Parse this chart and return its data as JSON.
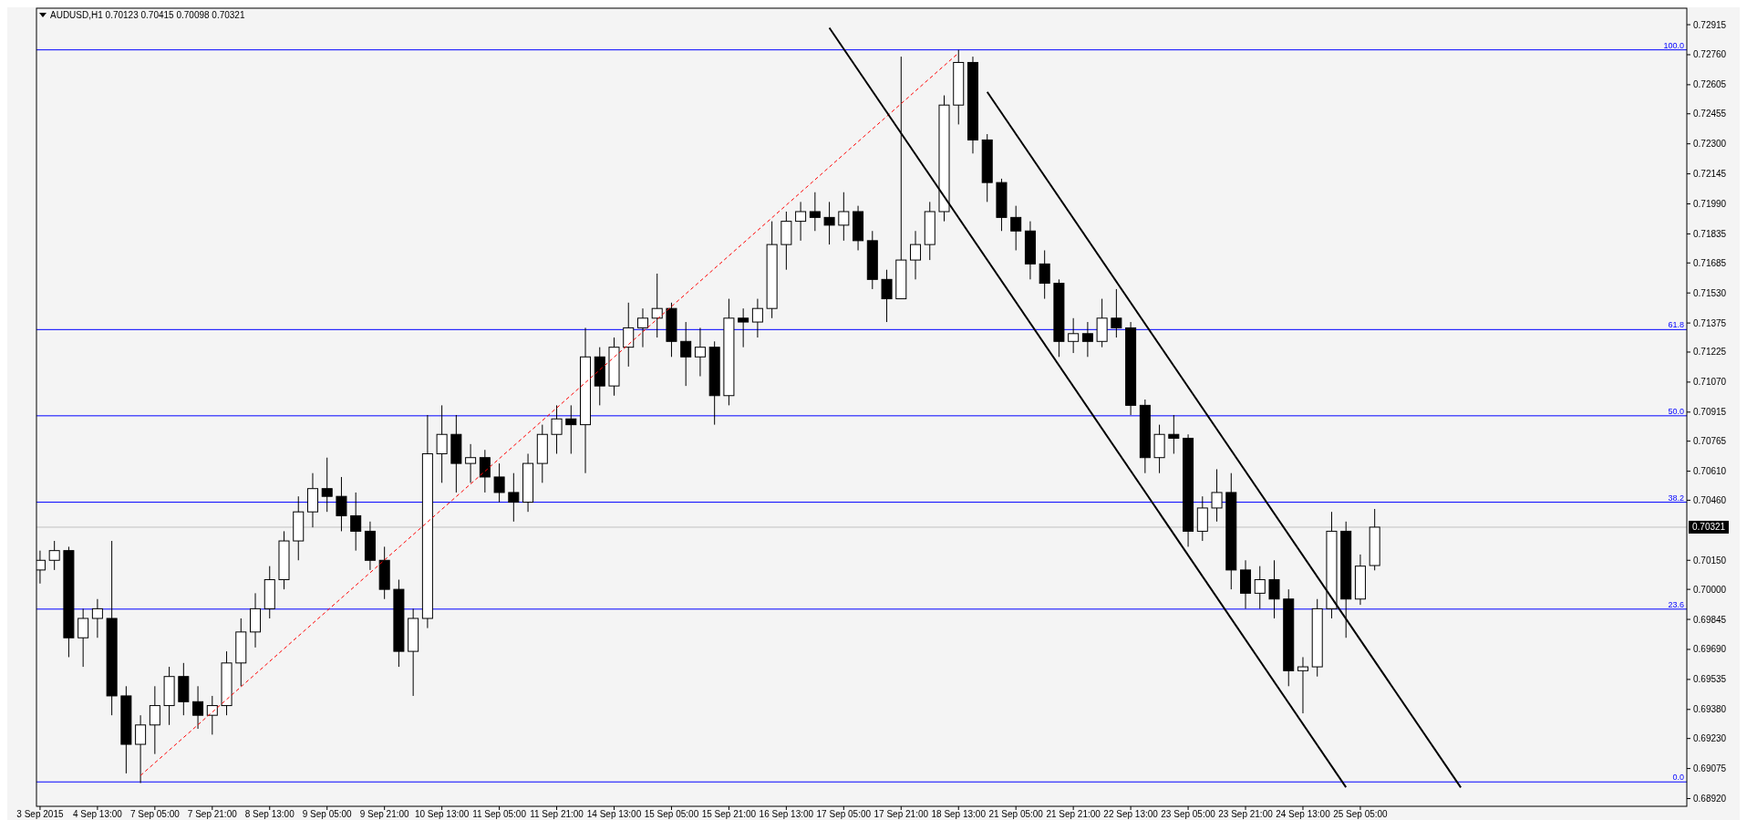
{
  "chart_data": {
    "type": "candlestick",
    "title": "AUDUSD,H1 0.70123 0.70415 0.70098 0.70321",
    "grid": false,
    "categories": [
      "3 Sep 2015",
      null,
      null,
      null,
      "4 Sep 13:00",
      null,
      null,
      null,
      "7 Sep 05:00",
      null,
      null,
      null,
      "7 Sep 21:00",
      null,
      null,
      null,
      "8 Sep 13:00",
      null,
      null,
      null,
      "9 Sep 05:00",
      null,
      null,
      null,
      "9 Sep 21:00",
      null,
      null,
      null,
      "10 Sep 13:00",
      null,
      null,
      null,
      "11 Sep 05:00",
      null,
      null,
      null,
      "11 Sep 21:00",
      null,
      null,
      null,
      "14 Sep 13:00",
      null,
      null,
      null,
      "15 Sep 05:00",
      null,
      null,
      null,
      "15 Sep 21:00",
      null,
      null,
      null,
      "16 Sep 13:00",
      null,
      null,
      null,
      "17 Sep 05:00",
      null,
      null,
      null,
      "17 Sep 21:00",
      null,
      null,
      null,
      "18 Sep 13:00",
      null,
      null,
      null,
      "21 Sep 05:00",
      null,
      null,
      null,
      "21 Sep 21:00",
      null,
      null,
      null,
      "22 Sep 13:00",
      null,
      null,
      null,
      "23 Sep 05:00",
      null,
      null,
      null,
      "23 Sep 21:00",
      null,
      null,
      null,
      "24 Sep 13:00",
      null,
      null,
      null,
      "25 Sep 05:00",
      null,
      null,
      null,
      null,
      null,
      null,
      null,
      null,
      null,
      null,
      null,
      null,
      null,
      null,
      null,
      null,
      null,
      null,
      null,
      null,
      null,
      null
    ],
    "ohlc": [
      [
        0.701,
        0.702,
        0.7003,
        0.7015
      ],
      [
        0.7015,
        0.7025,
        0.701,
        0.702
      ],
      [
        0.702,
        0.7022,
        0.6965,
        0.6975
      ],
      [
        0.6975,
        0.699,
        0.696,
        0.6985
      ],
      [
        0.6985,
        0.6995,
        0.6975,
        0.699
      ],
      [
        0.6985,
        0.7025,
        0.6935,
        0.6945
      ],
      [
        0.6945,
        0.695,
        0.6905,
        0.692
      ],
      [
        0.692,
        0.6935,
        0.69,
        0.693
      ],
      [
        0.693,
        0.695,
        0.6915,
        0.694
      ],
      [
        0.694,
        0.696,
        0.693,
        0.6955
      ],
      [
        0.6955,
        0.6962,
        0.6935,
        0.6942
      ],
      [
        0.6942,
        0.695,
        0.6928,
        0.6935
      ],
      [
        0.6935,
        0.6945,
        0.6925,
        0.694
      ],
      [
        0.694,
        0.6968,
        0.6935,
        0.6962
      ],
      [
        0.6962,
        0.6985,
        0.695,
        0.6978
      ],
      [
        0.6978,
        0.6998,
        0.697,
        0.699
      ],
      [
        0.699,
        0.7012,
        0.6985,
        0.7005
      ],
      [
        0.7005,
        0.703,
        0.7,
        0.7025
      ],
      [
        0.7025,
        0.7048,
        0.7015,
        0.704
      ],
      [
        0.704,
        0.706,
        0.7032,
        0.7052
      ],
      [
        0.7052,
        0.7068,
        0.704,
        0.7048
      ],
      [
        0.7048,
        0.7058,
        0.703,
        0.7038
      ],
      [
        0.7038,
        0.705,
        0.702,
        0.703
      ],
      [
        0.703,
        0.7035,
        0.701,
        0.7015
      ],
      [
        0.7015,
        0.7022,
        0.6995,
        0.7
      ],
      [
        0.7,
        0.7005,
        0.696,
        0.6968
      ],
      [
        0.6968,
        0.699,
        0.6945,
        0.6985
      ],
      [
        0.6985,
        0.709,
        0.698,
        0.707
      ],
      [
        0.707,
        0.7095,
        0.7055,
        0.708
      ],
      [
        0.708,
        0.709,
        0.705,
        0.7065
      ],
      [
        0.7065,
        0.7075,
        0.7055,
        0.7068
      ],
      [
        0.7068,
        0.7072,
        0.705,
        0.7058
      ],
      [
        0.7058,
        0.7065,
        0.7045,
        0.705
      ],
      [
        0.705,
        0.706,
        0.7035,
        0.7045
      ],
      [
        0.7045,
        0.707,
        0.704,
        0.7065
      ],
      [
        0.7065,
        0.7085,
        0.7055,
        0.708
      ],
      [
        0.708,
        0.7095,
        0.707,
        0.7088
      ],
      [
        0.7088,
        0.7095,
        0.707,
        0.7085
      ],
      [
        0.7085,
        0.7135,
        0.706,
        0.712
      ],
      [
        0.712,
        0.7125,
        0.7095,
        0.7105
      ],
      [
        0.7105,
        0.713,
        0.71,
        0.7125
      ],
      [
        0.7125,
        0.7148,
        0.7115,
        0.7135
      ],
      [
        0.7135,
        0.7145,
        0.7125,
        0.714
      ],
      [
        0.714,
        0.7163,
        0.713,
        0.7145
      ],
      [
        0.7145,
        0.7148,
        0.712,
        0.7128
      ],
      [
        0.7128,
        0.7138,
        0.7105,
        0.712
      ],
      [
        0.712,
        0.7135,
        0.711,
        0.7125
      ],
      [
        0.7125,
        0.7128,
        0.7085,
        0.71
      ],
      [
        0.71,
        0.715,
        0.7095,
        0.714
      ],
      [
        0.714,
        0.7145,
        0.7125,
        0.7138
      ],
      [
        0.7138,
        0.715,
        0.713,
        0.7145
      ],
      [
        0.7145,
        0.719,
        0.714,
        0.7178
      ],
      [
        0.7178,
        0.7195,
        0.7165,
        0.719
      ],
      [
        0.719,
        0.72,
        0.718,
        0.7195
      ],
      [
        0.7195,
        0.7205,
        0.7185,
        0.7192
      ],
      [
        0.7192,
        0.72,
        0.7178,
        0.7188
      ],
      [
        0.7188,
        0.7205,
        0.718,
        0.7195
      ],
      [
        0.7195,
        0.7198,
        0.7175,
        0.718
      ],
      [
        0.718,
        0.7185,
        0.7155,
        0.716
      ],
      [
        0.716,
        0.7165,
        0.7138,
        0.715
      ],
      [
        0.715,
        0.7275,
        0.715,
        0.717
      ],
      [
        0.717,
        0.7185,
        0.716,
        0.7178
      ],
      [
        0.7178,
        0.72,
        0.717,
        0.7195
      ],
      [
        0.7195,
        0.7255,
        0.719,
        0.725
      ],
      [
        0.725,
        0.72785,
        0.724,
        0.7272
      ],
      [
        0.7272,
        0.7275,
        0.7225,
        0.7232
      ],
      [
        0.7232,
        0.7235,
        0.72,
        0.721
      ],
      [
        0.721,
        0.7212,
        0.7185,
        0.7192
      ],
      [
        0.7192,
        0.7198,
        0.7175,
        0.7185
      ],
      [
        0.7185,
        0.719,
        0.716,
        0.7168
      ],
      [
        0.7168,
        0.7175,
        0.715,
        0.7158
      ],
      [
        0.7158,
        0.716,
        0.712,
        0.7128
      ],
      [
        0.7128,
        0.714,
        0.7122,
        0.7132
      ],
      [
        0.7132,
        0.7138,
        0.712,
        0.7128
      ],
      [
        0.7128,
        0.715,
        0.7125,
        0.714
      ],
      [
        0.714,
        0.7155,
        0.713,
        0.7135
      ],
      [
        0.7135,
        0.7138,
        0.709,
        0.7095
      ],
      [
        0.7095,
        0.7098,
        0.706,
        0.7068
      ],
      [
        0.7068,
        0.7085,
        0.706,
        0.708
      ],
      [
        0.708,
        0.709,
        0.707,
        0.7078
      ],
      [
        0.7078,
        0.708,
        0.7022,
        0.703
      ],
      [
        0.703,
        0.7048,
        0.7025,
        0.7042
      ],
      [
        0.7042,
        0.7062,
        0.7035,
        0.705
      ],
      [
        0.705,
        0.706,
        0.7,
        0.701
      ],
      [
        0.701,
        0.7015,
        0.699,
        0.6998
      ],
      [
        0.6998,
        0.7012,
        0.699,
        0.7005
      ],
      [
        0.7005,
        0.7015,
        0.6985,
        0.6995
      ],
      [
        0.6995,
        0.7,
        0.695,
        0.6958
      ],
      [
        0.6958,
        0.6965,
        0.6936,
        0.696
      ],
      [
        0.696,
        0.6995,
        0.6955,
        0.699
      ],
      [
        0.699,
        0.704,
        0.6985,
        0.703
      ],
      [
        0.703,
        0.7035,
        0.6975,
        0.6995
      ],
      [
        0.6995,
        0.7018,
        0.6992,
        0.7012
      ],
      [
        0.70123,
        0.70415,
        0.70098,
        0.70321
      ],
      null,
      null,
      null,
      null,
      null,
      null,
      null,
      null,
      null,
      null,
      null,
      null,
      null,
      null,
      null,
      null,
      null,
      null,
      null,
      null,
      null
    ],
    "series": [
      {
        "type": "line",
        "color": "#ff0000",
        "line_style": "dashed",
        "values": [
          null,
          null,
          null,
          null,
          null,
          null,
          null,
          0.69039,
          null,
          null,
          null,
          null,
          null,
          null,
          null,
          null,
          null,
          null,
          null,
          null,
          null,
          null,
          null,
          null,
          null,
          null,
          null,
          null,
          null,
          null,
          null,
          null,
          null,
          null,
          null,
          null,
          null,
          null,
          null,
          null,
          null,
          null,
          null,
          null,
          null,
          null,
          null,
          null,
          null,
          null,
          null,
          null,
          null,
          null,
          null,
          null,
          null,
          null,
          null,
          null,
          null,
          null,
          null,
          null,
          0.72769,
          null,
          null,
          null,
          null,
          null,
          null,
          null,
          null,
          null,
          null,
          null,
          null,
          null,
          null,
          null,
          null,
          null,
          null,
          null,
          null,
          null,
          null,
          null,
          null,
          null,
          null,
          null,
          null,
          null,
          null,
          null,
          null,
          null,
          null,
          null,
          null,
          null,
          null,
          null,
          null,
          null,
          null,
          null,
          null,
          null,
          null,
          null,
          null,
          null,
          null
        ]
      },
      {
        "type": "line",
        "color": "#000000",
        "line_style": "solid",
        "values": [
          null,
          null,
          null,
          null,
          null,
          null,
          null,
          null,
          null,
          null,
          null,
          null,
          null,
          null,
          null,
          null,
          null,
          null,
          null,
          null,
          null,
          null,
          null,
          null,
          null,
          null,
          null,
          null,
          null,
          null,
          null,
          null,
          null,
          null,
          null,
          null,
          null,
          null,
          null,
          null,
          null,
          null,
          null,
          null,
          null,
          null,
          null,
          null,
          null,
          null,
          null,
          null,
          null,
          null,
          null,
          0.72899,
          null,
          null,
          null,
          null,
          null,
          null,
          null,
          null,
          null,
          null,
          null,
          null,
          null,
          null,
          null,
          null,
          null,
          null,
          null,
          null,
          null,
          null,
          null,
          null,
          null,
          null,
          null,
          null,
          null,
          null,
          null,
          null,
          null,
          null,
          null,
          0.68978,
          null,
          null,
          null,
          null,
          null,
          null,
          null,
          null,
          null,
          null,
          null,
          null,
          null,
          null,
          null,
          null,
          null,
          null,
          null,
          null,
          null,
          null,
          null
        ]
      },
      {
        "type": "line",
        "color": "#000000",
        "line_style": "solid",
        "values": [
          null,
          null,
          null,
          null,
          null,
          null,
          null,
          null,
          null,
          null,
          null,
          null,
          null,
          null,
          null,
          null,
          null,
          null,
          null,
          null,
          null,
          null,
          null,
          null,
          null,
          null,
          null,
          null,
          null,
          null,
          null,
          null,
          null,
          null,
          null,
          null,
          null,
          null,
          null,
          null,
          null,
          null,
          null,
          null,
          null,
          null,
          null,
          null,
          null,
          null,
          null,
          null,
          null,
          null,
          null,
          null,
          null,
          null,
          null,
          null,
          null,
          null,
          null,
          null,
          null,
          null,
          0.72568,
          null,
          null,
          null,
          null,
          null,
          null,
          null,
          null,
          null,
          null,
          null,
          null,
          null,
          null,
          null,
          null,
          null,
          null,
          null,
          null,
          null,
          null,
          null,
          null,
          null,
          null,
          null,
          null,
          null,
          null,
          null,
          null,
          0.68977,
          null,
          null,
          null,
          null,
          null,
          null,
          null,
          null,
          null,
          null,
          null,
          null,
          null,
          null,
          null
        ]
      }
    ],
    "ylim": [
      0.6888,
      0.73
    ],
    "yticks": [
      {
        "value": 0.72915,
        "label": "0.72915"
      },
      {
        "value": 0.7276,
        "label": "0.72760"
      },
      {
        "value": 0.72605,
        "label": "0.72605"
      },
      {
        "value": 0.72455,
        "label": "0.72455"
      },
      {
        "value": 0.723,
        "label": "0.72300"
      },
      {
        "value": 0.72145,
        "label": "0.72145"
      },
      {
        "value": 0.7199,
        "label": "0.71990"
      },
      {
        "value": 0.71835,
        "label": "0.71835"
      },
      {
        "value": 0.71685,
        "label": "0.71685"
      },
      {
        "value": 0.7153,
        "label": "0.71530"
      },
      {
        "value": 0.71375,
        "label": "0.71375"
      },
      {
        "value": 0.71225,
        "label": "0.71225"
      },
      {
        "value": 0.7107,
        "label": "0.71070"
      },
      {
        "value": 0.70915,
        "label": "0.70915"
      },
      {
        "value": 0.70765,
        "label": "0.70765"
      },
      {
        "value": 0.7061,
        "label": "0.70610"
      },
      {
        "value": 0.7046,
        "label": "0.70460"
      },
      {
        "value": 0.7015,
        "label": "0.70150"
      },
      {
        "value": 0.7,
        "label": "0.70000"
      },
      {
        "value": 0.69845,
        "label": "0.69845"
      },
      {
        "value": 0.6969,
        "label": "0.69690"
      },
      {
        "value": 0.69535,
        "label": "0.69535"
      },
      {
        "value": 0.6938,
        "label": "0.69380"
      },
      {
        "value": 0.6923,
        "label": "0.69230"
      },
      {
        "value": 0.69075,
        "label": "0.69075"
      },
      {
        "value": 0.6892,
        "label": "0.68920"
      }
    ],
    "ref_lines": [
      {
        "axis": "y",
        "value": 0.72785,
        "color": "#0000ff"
      },
      {
        "axis": "y",
        "value": 0.71341,
        "color": "#0000ff"
      },
      {
        "axis": "y",
        "value": 0.70896,
        "color": "#0000ff"
      },
      {
        "axis": "y",
        "value": 0.7045,
        "color": "#0000ff"
      },
      {
        "axis": "y",
        "value": 0.69898,
        "color": "#0000ff"
      },
      {
        "axis": "y",
        "value": 0.69006,
        "color": "#0000ff"
      },
      {
        "axis": "y",
        "value": 0.70321,
        "label": "0.70321",
        "color": "#c0c0c0"
      }
    ],
    "annotations": [
      {
        "text": "100.0",
        "y": 0.72785
      },
      {
        "text": "61.8",
        "y": 0.71341
      },
      {
        "text": "50.0",
        "y": 0.70896
      },
      {
        "text": "38.2",
        "y": 0.7045
      },
      {
        "text": "23.6",
        "y": 0.69898
      },
      {
        "text": "0.0",
        "y": 0.69006
      }
    ]
  }
}
